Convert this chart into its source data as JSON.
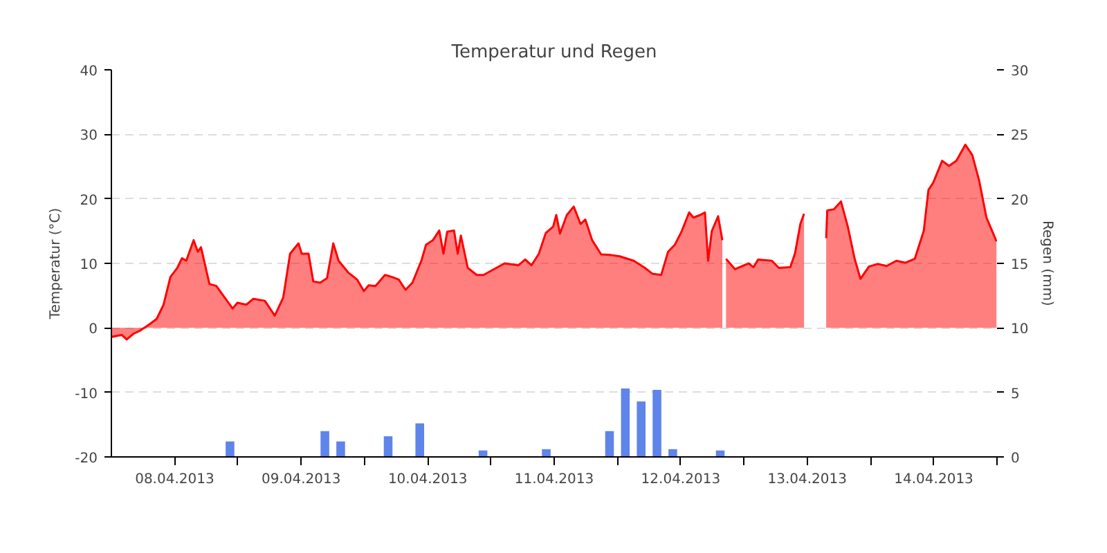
{
  "chart_data": {
    "type": "area",
    "title": "Temperatur und Regen",
    "ylabel": "Temperatur (°C)",
    "y2label": "Regen (mm)",
    "xlim": [
      "2013-04-08T00:00",
      "2013-04-15T00:00"
    ],
    "xticks": [
      {
        "value": "2013-04-08T12:00",
        "label": "08.04.2013"
      },
      {
        "value": "2013-04-09T00:00",
        "label": null
      },
      {
        "value": "2013-04-09T12:00",
        "label": "09.04.2013"
      },
      {
        "value": "2013-04-10T00:00",
        "label": null
      },
      {
        "value": "2013-04-10T12:00",
        "label": "10.04.2013"
      },
      {
        "value": "2013-04-11T00:00",
        "label": null
      },
      {
        "value": "2013-04-11T12:00",
        "label": "11.04.2013"
      },
      {
        "value": "2013-04-12T00:00",
        "label": null
      },
      {
        "value": "2013-04-12T12:00",
        "label": "12.04.2013"
      },
      {
        "value": "2013-04-13T00:00",
        "label": null
      },
      {
        "value": "2013-04-13T12:00",
        "label": "13.04.2013"
      },
      {
        "value": "2013-04-14T00:00",
        "label": null
      },
      {
        "value": "2013-04-14T12:00",
        "label": "14.04.2013"
      },
      {
        "value": "2013-04-15T00:00",
        "label": null
      }
    ],
    "ylim": [
      -20,
      40
    ],
    "yticks": [
      -20,
      -10,
      0,
      10,
      20,
      30,
      40
    ],
    "y2lim": [
      0,
      30
    ],
    "y2ticks": [
      0,
      5,
      10,
      15,
      20,
      25,
      30
    ],
    "grid": "y",
    "series": [
      {
        "color": "#ff0000",
        "x": [
          "2013-04-08T00:00",
          "2013-04-08T02:00",
          "2013-04-08T02:54",
          "2013-04-08T04:12",
          "2013-04-08T05:30",
          "2013-04-08T07:18",
          "2013-04-08T08:36",
          "2013-04-08T09:54",
          "2013-04-08T11:12",
          "2013-04-08T12:30",
          "2013-04-08T13:24",
          "2013-04-08T14:12",
          "2013-04-08T15:36",
          "2013-04-08T16:24",
          "2013-04-08T17:00",
          "2013-04-08T18:36",
          "2013-04-08T19:54",
          "2013-04-08T23:00",
          "2013-04-08T23:54",
          "2013-04-09T01:36",
          "2013-04-09T02:54",
          "2013-04-09T05:06",
          "2013-04-09T07:00",
          "2013-04-09T08:36",
          "2013-04-09T09:54",
          "2013-04-09T11:30",
          "2013-04-09T12:06",
          "2013-04-09T13:24",
          "2013-04-09T14:18",
          "2013-04-09T15:36",
          "2013-04-09T16:54",
          "2013-04-09T18:06",
          "2013-04-09T19:06",
          "2013-04-09T20:54",
          "2013-04-09T22:36",
          "2013-04-09T23:54",
          "2013-04-10T00:48",
          "2013-04-10T02:06",
          "2013-04-10T03:54",
          "2013-04-10T05:12",
          "2013-04-10T06:30",
          "2013-04-10T07:48",
          "2013-04-10T09:06",
          "2013-04-10T10:48",
          "2013-04-10T11:42",
          "2013-04-10T13:00",
          "2013-04-10T14:12",
          "2013-04-10T15:00",
          "2013-04-10T15:42",
          "2013-04-10T17:00",
          "2013-04-10T17:42",
          "2013-04-10T18:18",
          "2013-04-10T19:36",
          "2013-04-10T21:18",
          "2013-04-10T22:36",
          "2013-04-11T00:48",
          "2013-04-11T02:36",
          "2013-04-11T05:12",
          "2013-04-11T06:30",
          "2013-04-11T07:42",
          "2013-04-11T09:06",
          "2013-04-11T10:24",
          "2013-04-11T11:48",
          "2013-04-11T12:24",
          "2013-04-11T13:06",
          "2013-04-11T14:24",
          "2013-04-11T15:42",
          "2013-04-11T17:00",
          "2013-04-11T17:54",
          "2013-04-11T19:12",
          "2013-04-11T20:54",
          "2013-04-11T22:42",
          "2013-04-12T00:24",
          "2013-04-12T03:06",
          "2013-04-12T05:12",
          "2013-04-12T06:36",
          "2013-04-12T08:18",
          "2013-04-12T09:36",
          "2013-04-12T10:54",
          "2013-04-12T12:12",
          "2013-04-12T13:36",
          "2013-04-12T14:24",
          "2013-04-12T15:42",
          "2013-04-12T16:36",
          "2013-04-12T17:12",
          "2013-04-12T17:54",
          "2013-04-12T19:06",
          "2013-04-12T19:54",
          "2013-04-12T20:12",
          "2013-04-12T20:36",
          "2013-04-12T22:18",
          "2013-04-13T00:54",
          "2013-04-13T01:48",
          "2013-04-13T02:42",
          "2013-04-13T05:18",
          "2013-04-13T06:36",
          "2013-04-13T08:48",
          "2013-04-13T09:42",
          "2013-04-13T10:42",
          "2013-04-13T11:24",
          "2013-04-13T13:30",
          "2013-04-13T15:36",
          "2013-04-13T15:48",
          "2013-04-13T17:06",
          "2013-04-13T18:24",
          "2013-04-13T19:42",
          "2013-04-13T21:00",
          "2013-04-13T22:06",
          "2013-04-13T23:42",
          "2013-04-14T01:24",
          "2013-04-14T03:06",
          "2013-04-14T04:54",
          "2013-04-14T06:36",
          "2013-04-14T08:24",
          "2013-04-14T10:06",
          "2013-04-14T11:00",
          "2013-04-14T11:54",
          "2013-04-14T13:36",
          "2013-04-14T14:54",
          "2013-04-14T16:18",
          "2013-04-14T18:00",
          "2013-04-14T19:18",
          "2013-04-14T20:36",
          "2013-04-14T22:00",
          "2013-04-14T23:18",
          "2013-04-14T23:54"
        ],
        "values": [
          -1.4,
          -1.1,
          -1.8,
          -0.9,
          -0.4,
          0.6,
          1.4,
          3.6,
          7.9,
          9.3,
          10.8,
          10.4,
          13.6,
          11.8,
          12.5,
          6.8,
          6.5,
          3.0,
          3.9,
          3.6,
          4.5,
          4.2,
          1.9,
          4.7,
          11.5,
          13.1,
          11.5,
          11.5,
          7.2,
          7.0,
          7.7,
          13.1,
          10.4,
          8.6,
          7.5,
          5.7,
          6.6,
          6.5,
          8.2,
          7.9,
          7.5,
          5.9,
          7.0,
          10.4,
          12.9,
          13.6,
          15.1,
          11.5,
          14.9,
          15.1,
          11.5,
          14.3,
          9.3,
          8.2,
          8.2,
          9.2,
          10.0,
          9.7,
          10.6,
          9.7,
          11.5,
          14.7,
          15.7,
          17.5,
          14.6,
          17.5,
          18.8,
          16.1,
          16.8,
          13.6,
          11.4,
          11.3,
          11.1,
          10.4,
          9.3,
          8.4,
          8.2,
          11.8,
          12.9,
          15.0,
          17.9,
          17.1,
          17.5,
          17.9,
          10.4,
          15.0,
          17.3,
          13.6,
          null,
          10.7,
          9.1,
          10.0,
          9.4,
          10.6,
          10.4,
          9.3,
          9.4,
          11.6,
          16.1,
          17.7,
          null,
          13.9,
          18.2,
          18.4,
          19.6,
          15.7,
          10.7,
          7.6,
          9.5,
          9.9,
          9.6,
          10.4,
          10.1,
          10.7,
          15.0,
          21.4,
          22.5,
          25.9,
          25.1,
          25.9,
          28.4,
          26.8,
          22.9,
          17.1,
          14.6,
          13.4
        ]
      },
      {
        "type": "bar",
        "axis": "y2",
        "color": "#5f84ea",
        "x": [
          "2013-04-08T01:30",
          "2013-04-08T04:30",
          "2013-04-08T07:30",
          "2013-04-08T10:30",
          "2013-04-08T13:30",
          "2013-04-08T16:30",
          "2013-04-08T19:30",
          "2013-04-08T22:30",
          "2013-04-09T01:30",
          "2013-04-09T04:30",
          "2013-04-09T07:30",
          "2013-04-09T10:30",
          "2013-04-09T13:30",
          "2013-04-09T16:30",
          "2013-04-09T19:30",
          "2013-04-09T22:30",
          "2013-04-10T01:30",
          "2013-04-10T04:30",
          "2013-04-10T07:30",
          "2013-04-10T10:30",
          "2013-04-10T13:30",
          "2013-04-10T16:30",
          "2013-04-10T19:30",
          "2013-04-10T22:30",
          "2013-04-11T01:30",
          "2013-04-11T04:30",
          "2013-04-11T07:30",
          "2013-04-11T10:30",
          "2013-04-11T13:30",
          "2013-04-11T16:30",
          "2013-04-11T19:30",
          "2013-04-11T22:30",
          "2013-04-12T01:30",
          "2013-04-12T04:30",
          "2013-04-12T07:30",
          "2013-04-12T10:30",
          "2013-04-12T13:30",
          "2013-04-12T16:30",
          "2013-04-12T19:30",
          "2013-04-12T22:30",
          "2013-04-13T01:30",
          "2013-04-13T04:30",
          "2013-04-13T07:30",
          "2013-04-13T10:30",
          "2013-04-13T13:30",
          "2013-04-13T16:30",
          "2013-04-13T19:30",
          "2013-04-13T22:30",
          "2013-04-14T01:30",
          "2013-04-14T04:30",
          "2013-04-14T07:30",
          "2013-04-14T10:30",
          "2013-04-14T13:30",
          "2013-04-14T16:30",
          "2013-04-14T19:30",
          "2013-04-14T22:30"
        ],
        "values": [
          0,
          0,
          0,
          0,
          0,
          0,
          0,
          1.2,
          0,
          0,
          0,
          0,
          0,
          2.0,
          1.2,
          0,
          0,
          1.6,
          0,
          2.6,
          0,
          0,
          0,
          0.5,
          0,
          0,
          0,
          0.6,
          0,
          0,
          0,
          2.0,
          5.3,
          4.3,
          5.2,
          0.6,
          0,
          0,
          0.5,
          0,
          0,
          0,
          0,
          0,
          0,
          0,
          0,
          0,
          0,
          0,
          0,
          0,
          0,
          0,
          0,
          0
        ]
      }
    ]
  }
}
